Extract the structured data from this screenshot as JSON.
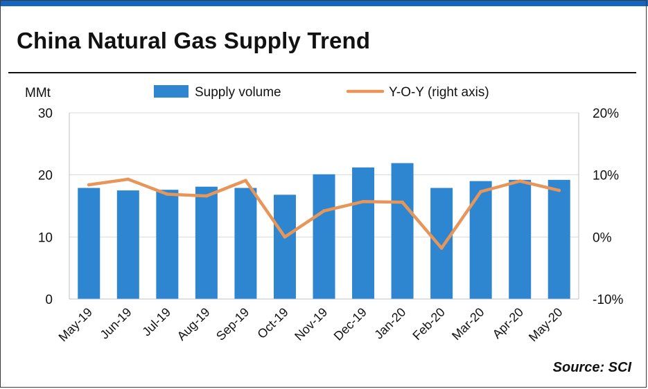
{
  "page": {
    "title": "China Natural Gas Supply Trend",
    "source": "Source: SCI"
  },
  "colors": {
    "bar": "#2e86d1",
    "line": "#e8955a",
    "accent_bar": "#1565c0",
    "grid": "#d9d9d9"
  },
  "chart_data": {
    "type": "bar",
    "title": "China Natural Gas Supply Trend",
    "categories": [
      "May-19",
      "Jun-19",
      "Jul-19",
      "Aug-19",
      "Sep-19",
      "Oct-19",
      "Nov-19",
      "Dec-19",
      "Jan-20",
      "Feb-20",
      "Mar-20",
      "Apr-20",
      "May-20"
    ],
    "ylabel": "MMt",
    "ylim": [
      0,
      30
    ],
    "yticks": [
      "0",
      "10",
      "20",
      "30"
    ],
    "y2lim": [
      -10,
      20
    ],
    "y2ticks": [
      "-10%",
      "0%",
      "10%",
      "20%"
    ],
    "grid": true,
    "legend_position": "top",
    "series": [
      {
        "name": "Supply volume",
        "type": "bar",
        "axis": "left",
        "values": [
          17.9,
          17.5,
          17.6,
          18.1,
          17.9,
          16.8,
          20.1,
          21.2,
          21.9,
          17.9,
          19.0,
          19.2,
          19.2
        ]
      },
      {
        "name": "Y-O-Y (right axis)",
        "type": "line",
        "axis": "right",
        "values": [
          8.4,
          9.3,
          6.9,
          6.6,
          9.1,
          0.0,
          4.2,
          5.7,
          5.6,
          -1.8,
          7.3,
          9.0,
          7.5
        ]
      }
    ]
  }
}
